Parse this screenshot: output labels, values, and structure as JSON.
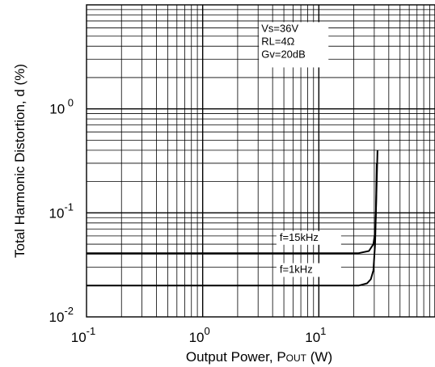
{
  "chart_data": {
    "type": "line",
    "xlabel": "Output Power, P",
    "xlabel_sub": "OUT",
    "xlabel_unit": " (W)",
    "ylabel": "Total Harmonic Distortion, d (%)",
    "xscale": "log",
    "yscale": "log",
    "xlim": [
      0.1,
      100
    ],
    "ylim": [
      0.01,
      10
    ],
    "grid": true,
    "x_ticks": [
      {
        "base": "10",
        "exp": "-1",
        "value": 0.1
      },
      {
        "base": "10",
        "exp": "0",
        "value": 1
      },
      {
        "base": "10",
        "exp": "1",
        "value": 10
      }
    ],
    "y_ticks": [
      {
        "base": "10",
        "exp": "-2",
        "value": 0.01
      },
      {
        "base": "10",
        "exp": "-1",
        "value": 0.1
      },
      {
        "base": "10",
        "exp": " 0",
        "value": 1
      }
    ],
    "conditions": [
      "Vs=36V",
      "RL=4Ω",
      "Gv=20dB"
    ],
    "series": [
      {
        "name": "f=15kHz",
        "x": [
          0.1,
          1,
          10,
          22,
          27,
          29.5,
          30.5,
          31,
          31.5,
          32
        ],
        "y": [
          0.041,
          0.041,
          0.041,
          0.041,
          0.043,
          0.05,
          0.065,
          0.1,
          0.2,
          0.4
        ]
      },
      {
        "name": "f=1kHz",
        "x": [
          0.1,
          1,
          10,
          22,
          26,
          28,
          29.5,
          30.5,
          31,
          31.5
        ],
        "y": [
          0.02,
          0.02,
          0.02,
          0.02,
          0.021,
          0.023,
          0.028,
          0.05,
          0.1,
          0.3
        ]
      }
    ]
  }
}
